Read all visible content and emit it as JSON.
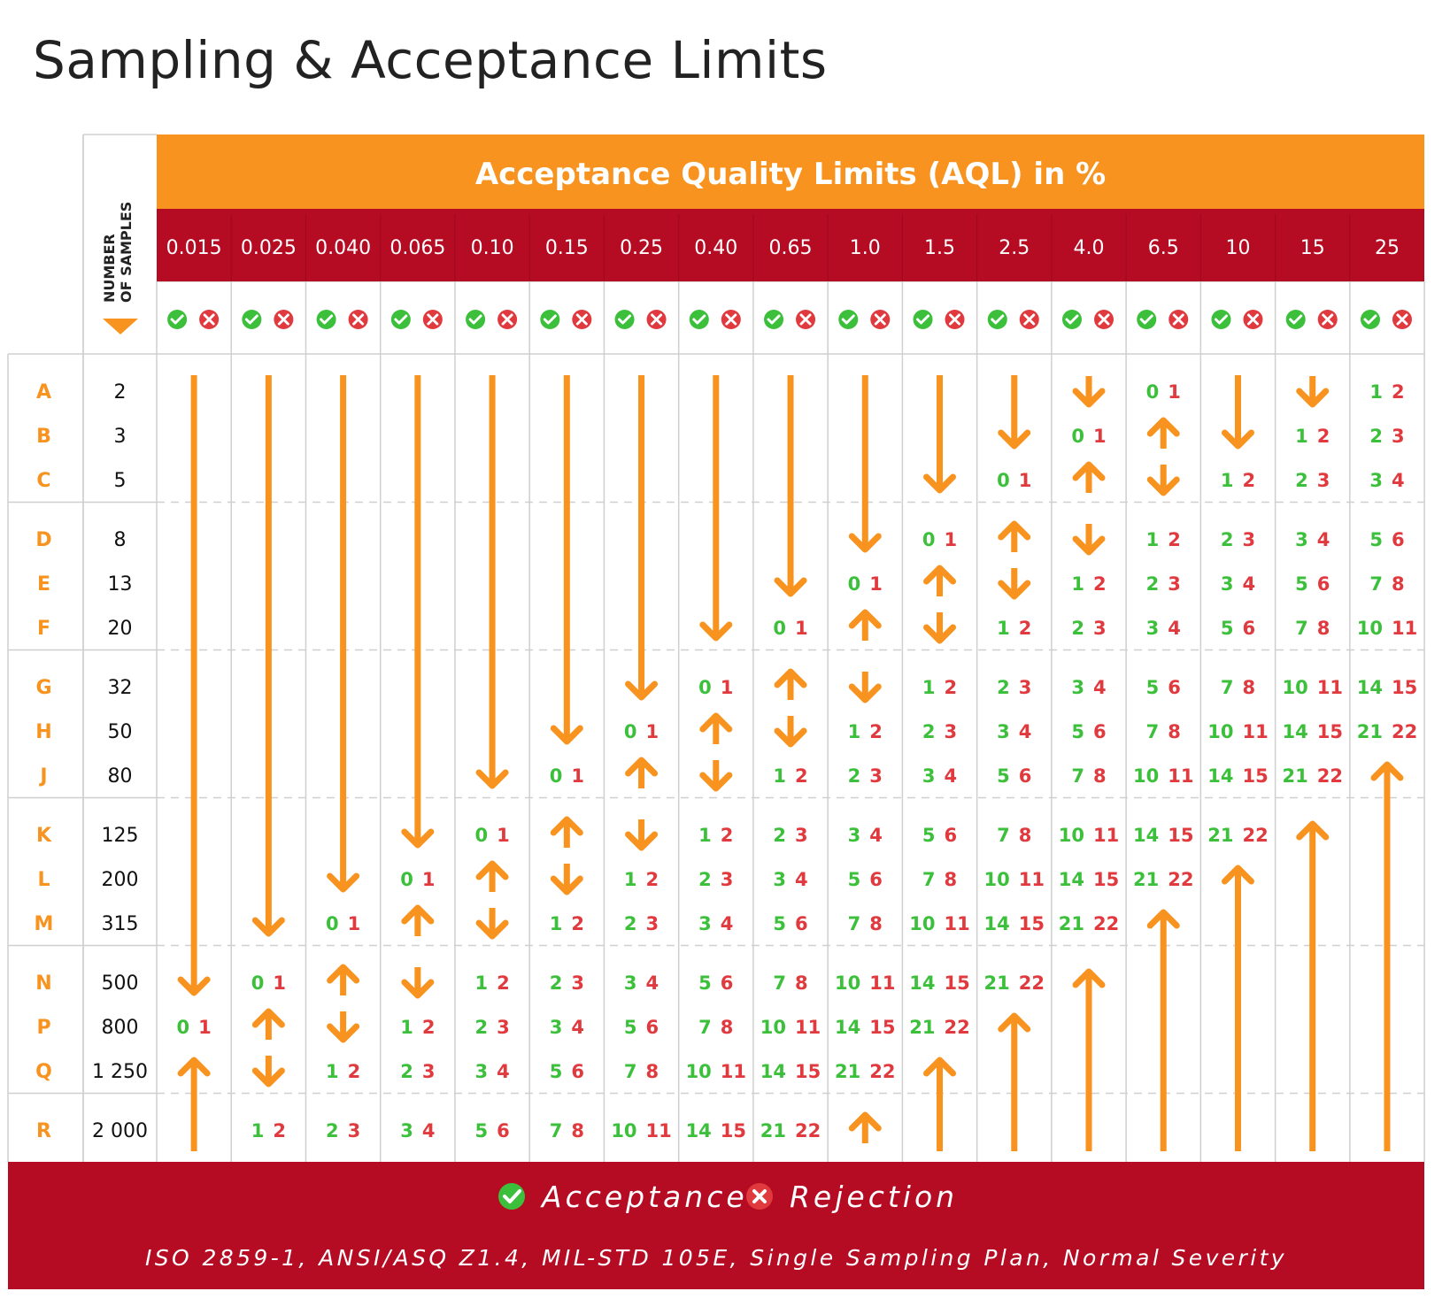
{
  "title": "Sampling & Acceptance Limits",
  "header": {
    "band_title": "Acceptance Quality Limits (AQL) in %",
    "samples_label_line1": "NUMBER",
    "samples_label_line2": "OF SAMPLES"
  },
  "aql_levels": [
    "0.015",
    "0.025",
    "0.040",
    "0.065",
    "0.10",
    "0.15",
    "0.25",
    "0.40",
    "0.65",
    "1.0",
    "1.5",
    "2.5",
    "4.0",
    "6.5",
    "10",
    "15",
    "25"
  ],
  "rows": [
    {
      "code": "A",
      "samples": "2"
    },
    {
      "code": "B",
      "samples": "3"
    },
    {
      "code": "C",
      "samples": "5"
    },
    {
      "code": "D",
      "samples": "8"
    },
    {
      "code": "E",
      "samples": "13"
    },
    {
      "code": "F",
      "samples": "20"
    },
    {
      "code": "G",
      "samples": "32"
    },
    {
      "code": "H",
      "samples": "50"
    },
    {
      "code": "J",
      "samples": "80"
    },
    {
      "code": "K",
      "samples": "125"
    },
    {
      "code": "L",
      "samples": "200"
    },
    {
      "code": "M",
      "samples": "315"
    },
    {
      "code": "N",
      "samples": "500"
    },
    {
      "code": "P",
      "samples": "800"
    },
    {
      "code": "Q",
      "samples": "1 250"
    },
    {
      "code": "R",
      "samples": "2 000"
    }
  ],
  "cells": [
    [
      "down",
      "down",
      "down",
      "down",
      "down",
      "down",
      "down",
      "down",
      "down",
      "down",
      "down",
      "down",
      "down",
      "0 1",
      "down",
      "down",
      "1 2"
    ],
    [
      "down",
      "down",
      "down",
      "down",
      "down",
      "down",
      "down",
      "down",
      "down",
      "down",
      "down",
      "down",
      "0 1",
      "up",
      "down",
      "1 2",
      "2 3"
    ],
    [
      "down",
      "down",
      "down",
      "down",
      "down",
      "down",
      "down",
      "down",
      "down",
      "down",
      "down",
      "0 1",
      "up",
      "down",
      "1 2",
      "2 3",
      "3 4"
    ],
    [
      "down",
      "down",
      "down",
      "down",
      "down",
      "down",
      "down",
      "down",
      "down",
      "down",
      "0 1",
      "up",
      "down",
      "1 2",
      "2 3",
      "3 4",
      "5 6"
    ],
    [
      "down",
      "down",
      "down",
      "down",
      "down",
      "down",
      "down",
      "down",
      "down",
      "0 1",
      "up",
      "down",
      "1 2",
      "2 3",
      "3 4",
      "5 6",
      "7 8"
    ],
    [
      "down",
      "down",
      "down",
      "down",
      "down",
      "down",
      "down",
      "down",
      "0 1",
      "up",
      "down",
      "1 2",
      "2 3",
      "3 4",
      "5 6",
      "7 8",
      "10 11"
    ],
    [
      "down",
      "down",
      "down",
      "down",
      "down",
      "down",
      "down",
      "0 1",
      "up",
      "down",
      "1 2",
      "2 3",
      "3 4",
      "5 6",
      "7 8",
      "10 11",
      "14 15"
    ],
    [
      "down",
      "down",
      "down",
      "down",
      "down",
      "down",
      "0 1",
      "up",
      "down",
      "1 2",
      "2 3",
      "3 4",
      "5 6",
      "7 8",
      "10 11",
      "14 15",
      "21 22"
    ],
    [
      "down",
      "down",
      "down",
      "down",
      "down",
      "0 1",
      "up",
      "down",
      "1 2",
      "2 3",
      "3 4",
      "5 6",
      "7 8",
      "10 11",
      "14 15",
      "21 22",
      "up"
    ],
    [
      "down",
      "down",
      "down",
      "down",
      "0 1",
      "up",
      "down",
      "1 2",
      "2 3",
      "3 4",
      "5 6",
      "7 8",
      "10 11",
      "14 15",
      "21 22",
      "up",
      "up"
    ],
    [
      "down",
      "down",
      "down",
      "0 1",
      "up",
      "down",
      "1 2",
      "2 3",
      "3 4",
      "5 6",
      "7 8",
      "10 11",
      "14 15",
      "21 22",
      "up",
      "up",
      "up"
    ],
    [
      "down",
      "down",
      "0 1",
      "up",
      "down",
      "1 2",
      "2 3",
      "3 4",
      "5 6",
      "7 8",
      "10 11",
      "14 15",
      "21 22",
      "up",
      "up",
      "up",
      "up"
    ],
    [
      "down",
      "0 1",
      "up",
      "down",
      "1 2",
      "2 3",
      "3 4",
      "5 6",
      "7 8",
      "10 11",
      "14 15",
      "21 22",
      "up",
      "up",
      "up",
      "up",
      "up"
    ],
    [
      "0 1",
      "up",
      "down",
      "1 2",
      "2 3",
      "3 4",
      "5 6",
      "7 8",
      "10 11",
      "14 15",
      "21 22",
      "up",
      "up",
      "up",
      "up",
      "up",
      "up"
    ],
    [
      "up",
      "down",
      "1 2",
      "2 3",
      "3 4",
      "5 6",
      "7 8",
      "10 11",
      "14 15",
      "21 22",
      "up",
      "up",
      "up",
      "up",
      "up",
      "up",
      "up"
    ],
    [
      "up",
      "1 2",
      "2 3",
      "3 4",
      "5 6",
      "7 8",
      "10 11",
      "14 15",
      "21 22",
      "up",
      "up",
      "up",
      "up",
      "up",
      "up",
      "up",
      "up"
    ]
  ],
  "legend": {
    "acceptance": "Acceptance",
    "rejection": "Rejection",
    "footnote": "ISO 2859-1, ANSI/ASQ Z1.4, MIL-STD 105E, Single Sampling Plan, Normal Severity"
  },
  "icons": {
    "accept": "check-circle-icon",
    "reject": "x-circle-icon",
    "header_pointer": "triangle-down-icon",
    "arrow": "arrow-icon"
  },
  "colors": {
    "orange": "#F7931E",
    "red": "#B50B23",
    "green": "#3CC03C",
    "reject_red": "#E0393E",
    "grid": "#CFCFCF"
  }
}
